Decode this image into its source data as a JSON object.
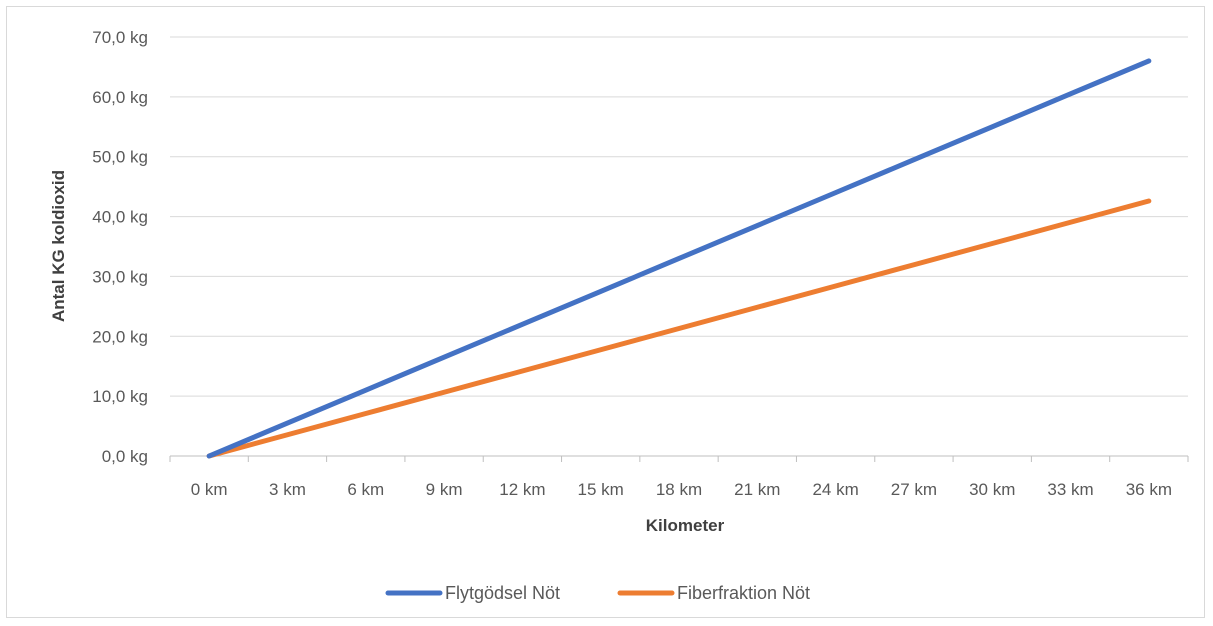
{
  "chart_data": {
    "type": "line",
    "categories": [
      "0 km",
      "3 km",
      "6 km",
      "9 km",
      "12 km",
      "15 km",
      "18 km",
      "21 km",
      "24 km",
      "27 km",
      "30 km",
      "33 km",
      "36 km"
    ],
    "x": [
      0,
      3,
      6,
      9,
      12,
      15,
      18,
      21,
      24,
      27,
      30,
      33,
      36
    ],
    "series": [
      {
        "name": "Flytgödsel Nöt",
        "color": "#4472C4",
        "values": [
          0,
          5.5,
          11.0,
          16.5,
          22.0,
          27.5,
          33.0,
          38.5,
          44.0,
          49.5,
          55.0,
          60.5,
          66.0
        ]
      },
      {
        "name": "Fiberfraktion Nöt",
        "color": "#ED7D31",
        "values": [
          0,
          3.55,
          7.1,
          10.65,
          14.2,
          17.75,
          21.3,
          24.85,
          28.4,
          31.95,
          35.5,
          39.05,
          42.6
        ]
      }
    ],
    "yticks": [
      0,
      10,
      20,
      30,
      40,
      50,
      60,
      70
    ],
    "ytick_labels": [
      "0,0 kg",
      "10,0 kg",
      "20,0 kg",
      "30,0 kg",
      "40,0 kg",
      "50,0 kg",
      "60,0 kg",
      "70,0 kg"
    ],
    "ylim": [
      0,
      70
    ],
    "xlabel": "Kilometer",
    "ylabel": "Antal KG koldioxid",
    "title": "",
    "grid": true,
    "legend_position": "bottom"
  }
}
